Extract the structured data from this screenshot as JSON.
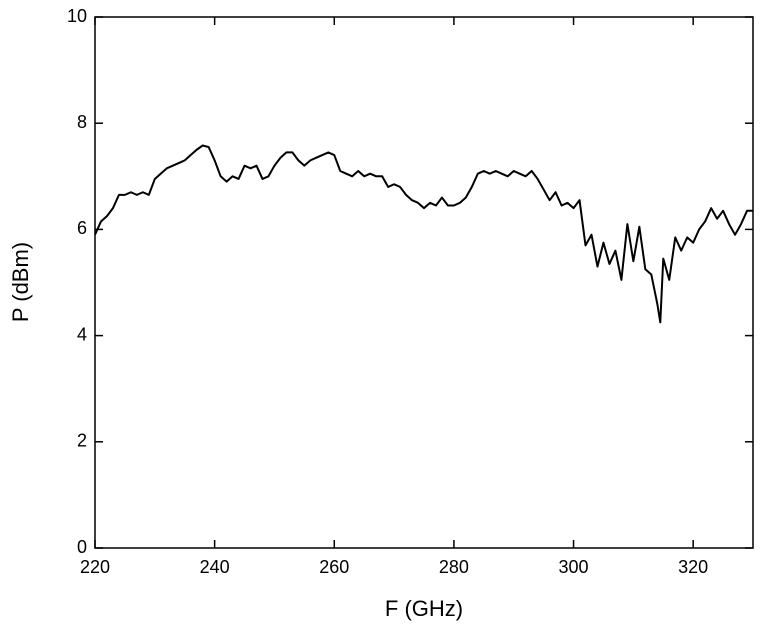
{
  "chart_data": {
    "type": "line",
    "x_label": "F (GHz)",
    "y_label": "P (dBm)",
    "xlim": [
      220,
      330
    ],
    "ylim": [
      0,
      10
    ],
    "xticks": [
      220,
      240,
      260,
      280,
      300,
      320
    ],
    "yticks": [
      0,
      2,
      4,
      6,
      8,
      10
    ],
    "color": "#000000",
    "x": [
      220,
      221,
      222,
      223,
      224,
      225,
      226,
      227,
      228,
      229,
      230,
      231,
      232,
      233,
      234,
      235,
      236,
      237,
      238,
      239,
      240,
      241,
      242,
      243,
      244,
      245,
      246,
      247,
      248,
      249,
      250,
      251,
      252,
      253,
      254,
      255,
      256,
      257,
      258,
      259,
      260,
      261,
      262,
      263,
      264,
      265,
      266,
      267,
      268,
      269,
      270,
      271,
      272,
      273,
      274,
      275,
      276,
      277,
      278,
      279,
      280,
      281,
      282,
      283,
      284,
      285,
      286,
      287,
      288,
      289,
      290,
      291,
      292,
      293,
      294,
      295,
      296,
      297,
      298,
      299,
      300,
      301,
      302,
      303,
      304,
      305,
      306,
      307,
      308,
      309,
      310,
      311,
      312,
      313,
      314,
      314.5,
      315,
      316,
      317,
      318,
      319,
      320,
      321,
      322,
      323,
      324,
      325,
      326,
      327,
      328,
      329,
      330
    ],
    "values": [
      5.9,
      6.15,
      6.25,
      6.4,
      6.65,
      6.65,
      6.7,
      6.65,
      6.7,
      6.65,
      6.95,
      7.05,
      7.15,
      7.2,
      7.25,
      7.3,
      7.4,
      7.5,
      7.58,
      7.55,
      7.3,
      7.0,
      6.9,
      7.0,
      6.95,
      7.2,
      7.15,
      7.2,
      6.95,
      7.0,
      7.2,
      7.35,
      7.45,
      7.45,
      7.3,
      7.2,
      7.3,
      7.35,
      7.4,
      7.45,
      7.4,
      7.1,
      7.05,
      7.0,
      7.1,
      7.0,
      7.05,
      7.0,
      7.0,
      6.8,
      6.85,
      6.8,
      6.65,
      6.55,
      6.5,
      6.4,
      6.5,
      6.45,
      6.6,
      6.45,
      6.45,
      6.5,
      6.6,
      6.8,
      7.05,
      7.1,
      7.05,
      7.1,
      7.05,
      7.0,
      7.1,
      7.05,
      7.0,
      7.1,
      6.95,
      6.75,
      6.55,
      6.7,
      6.45,
      6.5,
      6.4,
      6.55,
      5.7,
      5.9,
      5.3,
      5.75,
      5.35,
      5.6,
      5.05,
      6.1,
      5.4,
      6.05,
      5.25,
      5.15,
      4.6,
      4.25,
      5.45,
      5.05,
      5.85,
      5.6,
      5.85,
      5.75,
      6.0,
      6.15,
      6.4,
      6.2,
      6.35,
      6.1,
      5.9,
      6.1,
      6.35,
      6.35
    ]
  }
}
